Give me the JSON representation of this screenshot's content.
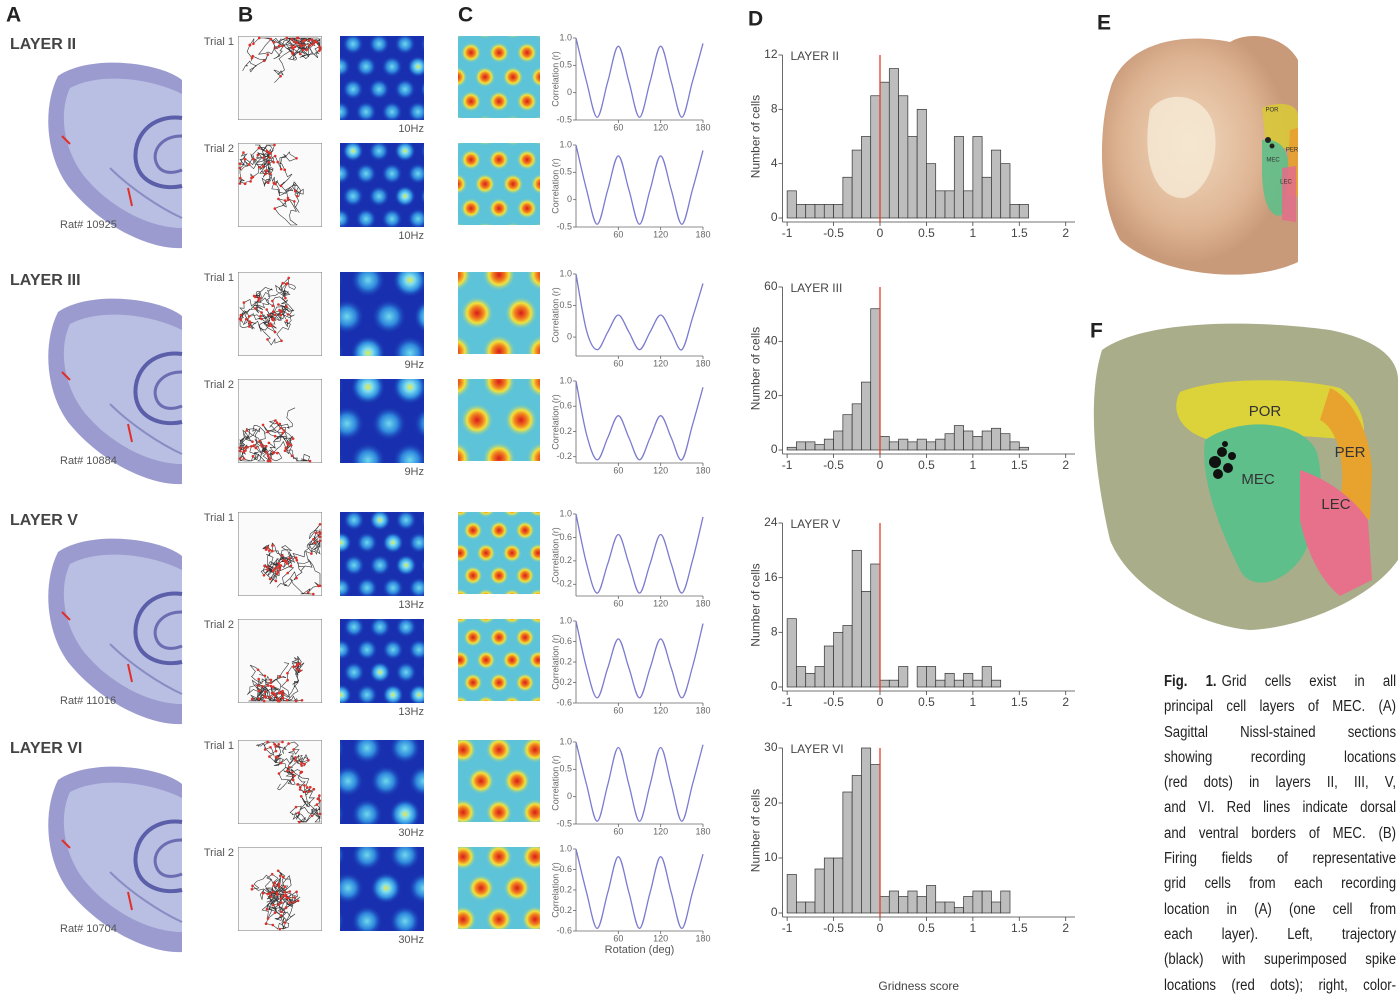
{
  "panel_labels": [
    "A",
    "B",
    "C",
    "D",
    "E",
    "F"
  ],
  "layers": [
    {
      "name": "LAYER II",
      "rat": "Rat# 10925",
      "trials": [
        "Trial 1",
        "Trial 2"
      ],
      "peak_rates": [
        "10Hz",
        "10Hz"
      ]
    },
    {
      "name": "LAYER III",
      "rat": "Rat# 10884",
      "trials": [
        "Trial 1",
        "Trial 2"
      ],
      "peak_rates": [
        "9Hz",
        "9Hz"
      ]
    },
    {
      "name": "LAYER V",
      "rat": "Rat# 11016",
      "trials": [
        "Trial 1",
        "Trial 2"
      ],
      "peak_rates": [
        "13Hz",
        "13Hz"
      ]
    },
    {
      "name": "LAYER VI",
      "rat": "Rat# 10704",
      "trials": [
        "Trial 1",
        "Trial 2"
      ],
      "peak_rates": [
        "30Hz",
        "30Hz"
      ]
    }
  ],
  "brain_e": {
    "labels": [
      "POR",
      "PER",
      "MEC",
      "LEC"
    ]
  },
  "brain_f": {
    "labels": [
      "POR",
      "PER",
      "MEC",
      "LEC"
    ]
  },
  "caption": {
    "label": "Fig. 1.",
    "lines": [
      "Grid cells exist in all",
      "principal cell layers of MEC. (A)",
      "Sagittal Nissl-stained sections",
      "showing recording locations",
      "(red dots) in layers II, III, V,",
      "and VI. Red lines indicate dorsal",
      "and ventral borders of MEC. (B)",
      "Firing fields of representative",
      "grid cells from each recording",
      "location in (A) (one cell from",
      "each layer). Left, trajectory",
      "(black) with superimposed spike",
      "locations (red dots); right, color-"
    ]
  },
  "chart_data": [
    {
      "type": "line",
      "ylabel": "Correlation (r)",
      "color": "#7b7bd0",
      "x": [
        0,
        15,
        30,
        45,
        60,
        75,
        90,
        105,
        120,
        135,
        150,
        165,
        180
      ],
      "values": [
        1,
        0.2,
        -0.45,
        0.2,
        0.85,
        0.2,
        -0.45,
        0.2,
        0.85,
        0.2,
        -0.45,
        0.2,
        0.9
      ],
      "xlim": [
        0,
        180
      ],
      "ylim": [
        -0.5,
        1
      ],
      "xticks": [
        60,
        120,
        180
      ],
      "yticks": [
        {
          "value": 1,
          "label": "1.0"
        },
        0.5,
        0,
        -0.5
      ]
    },
    {
      "type": "line",
      "ylabel": "Correlation (r)",
      "color": "#7b7bd0",
      "x": [
        0,
        15,
        30,
        45,
        60,
        75,
        90,
        105,
        120,
        135,
        150,
        165,
        180
      ],
      "values": [
        1,
        0.18,
        -0.45,
        0.18,
        0.8,
        0.18,
        -0.45,
        0.18,
        0.8,
        0.18,
        -0.45,
        0.18,
        0.9
      ],
      "xlim": [
        0,
        180
      ],
      "ylim": [
        -0.5,
        1
      ],
      "xticks": [
        60,
        120,
        180
      ],
      "yticks": [
        {
          "value": 1,
          "label": "1.0"
        },
        0.5,
        0,
        -0.5
      ]
    },
    {
      "type": "line",
      "ylabel": "Correlation (r)",
      "color": "#7b7bd0",
      "x": [
        0,
        15,
        30,
        45,
        60,
        75,
        90,
        105,
        120,
        135,
        150,
        165,
        180
      ],
      "values": [
        1,
        0.1,
        -0.2,
        0.08,
        0.35,
        0.08,
        -0.2,
        0.08,
        0.35,
        0.08,
        -0.2,
        0.3,
        0.85
      ],
      "xlim": [
        0,
        180
      ],
      "ylim": [
        -0.3,
        1
      ],
      "xticks": [
        60,
        120,
        180
      ],
      "yticks": [
        {
          "value": 1,
          "label": "1.0"
        },
        0.5,
        0
      ]
    },
    {
      "type": "line",
      "ylabel": "Correlation (r)",
      "color": "#7b7bd0",
      "x": [
        0,
        15,
        30,
        45,
        60,
        75,
        90,
        105,
        120,
        135,
        150,
        165,
        180
      ],
      "values": [
        1,
        0.15,
        -0.25,
        0.1,
        0.45,
        0.1,
        -0.25,
        0.1,
        0.45,
        0.1,
        -0.25,
        0.3,
        0.9
      ],
      "xlim": [
        0,
        180
      ],
      "ylim": [
        -0.3,
        1
      ],
      "xticks": [
        60,
        120,
        180
      ],
      "yticks": [
        {
          "value": 1,
          "label": "1.0"
        },
        0.6,
        0.2,
        -0.2
      ]
    },
    {
      "type": "line",
      "ylabel": "Correlation (r)",
      "color": "#7b7bd0",
      "x": [
        0,
        15,
        30,
        45,
        60,
        75,
        90,
        105,
        120,
        135,
        150,
        165,
        180
      ],
      "values": [
        1,
        0.15,
        -0.35,
        0.15,
        0.65,
        0.15,
        -0.35,
        0.15,
        0.65,
        0.15,
        -0.35,
        0.2,
        0.95
      ],
      "xlim": [
        0,
        180
      ],
      "ylim": [
        -0.4,
        1
      ],
      "xticks": [
        60,
        120,
        180
      ],
      "yticks": [
        {
          "value": 1,
          "label": "1.0"
        },
        0.6,
        0.2,
        -0.2
      ]
    },
    {
      "type": "line",
      "ylabel": "Correlation (r)",
      "color": "#7b7bd0",
      "x": [
        0,
        15,
        30,
        45,
        60,
        75,
        90,
        105,
        120,
        135,
        150,
        165,
        180
      ],
      "values": [
        1,
        0.08,
        -0.5,
        0.08,
        0.65,
        0.08,
        -0.5,
        0.08,
        0.65,
        0.08,
        -0.5,
        0.1,
        0.95
      ],
      "xlim": [
        0,
        180
      ],
      "ylim": [
        -0.6,
        1
      ],
      "xticks": [
        60,
        120,
        180
      ],
      "yticks": [
        {
          "value": 1,
          "label": "1.0"
        },
        0.6,
        0.2,
        -0.2,
        -0.6
      ]
    },
    {
      "type": "line",
      "ylabel": "Correlation (r)",
      "color": "#7b7bd0",
      "x": [
        0,
        15,
        30,
        45,
        60,
        75,
        90,
        105,
        120,
        135,
        150,
        165,
        180
      ],
      "values": [
        1,
        0.22,
        -0.45,
        0.22,
        0.9,
        0.22,
        -0.45,
        0.22,
        0.9,
        0.22,
        -0.45,
        0.22,
        0.95
      ],
      "xlim": [
        0,
        180
      ],
      "ylim": [
        -0.5,
        1
      ],
      "xticks": [
        60,
        120,
        180
      ],
      "yticks": [
        {
          "value": 1,
          "label": "1.0"
        },
        0.5,
        0,
        -0.5
      ]
    },
    {
      "type": "line",
      "ylabel": "Correlation (r)",
      "xlabel": "Rotation (deg)",
      "color": "#7b7bd0",
      "x": [
        0,
        15,
        30,
        45,
        60,
        75,
        90,
        105,
        120,
        135,
        150,
        165,
        180
      ],
      "values": [
        1,
        0.15,
        -0.55,
        0.15,
        0.85,
        0.15,
        -0.55,
        0.15,
        0.85,
        0.15,
        -0.55,
        0.15,
        0.9
      ],
      "xlim": [
        0,
        180
      ],
      "ylim": [
        -0.6,
        1
      ],
      "xticks": [
        60,
        120,
        180
      ],
      "yticks": [
        {
          "value": 1,
          "label": "1.0"
        },
        0.6,
        0.2,
        -0.2,
        -0.6
      ]
    },
    {
      "type": "histogram",
      "title": "LAYER II",
      "ylabel": "Number of cells",
      "color": "#bdbdbd",
      "vline": 0,
      "vline_color": "#e0402a",
      "bins": [
        -1,
        -0.9,
        -0.8,
        -0.7,
        -0.6,
        -0.5,
        -0.4,
        -0.3,
        -0.2,
        -0.1,
        0,
        0.1,
        0.2,
        0.3,
        0.4,
        0.5,
        0.6,
        0.7,
        0.8,
        0.9,
        1,
        1.1,
        1.2,
        1.3,
        1.4,
        1.5,
        1.6
      ],
      "values": [
        2,
        1,
        1,
        1,
        1,
        1,
        3,
        5,
        6,
        9,
        10,
        11,
        9,
        6,
        8,
        4,
        2,
        2,
        6,
        2,
        6,
        3,
        5,
        4,
        1,
        1
      ],
      "xlim": [
        -1.05,
        2.1
      ],
      "ylim": [
        0,
        12
      ],
      "xticks": [
        -1,
        -0.5,
        0,
        0.5,
        1,
        1.5,
        2
      ],
      "yticks": [
        0,
        4,
        8,
        12
      ]
    },
    {
      "type": "histogram",
      "title": "LAYER III",
      "ylabel": "Number of cells",
      "color": "#bdbdbd",
      "vline": 0,
      "vline_color": "#e0402a",
      "bins": [
        -1,
        -0.9,
        -0.8,
        -0.7,
        -0.6,
        -0.5,
        -0.4,
        -0.3,
        -0.2,
        -0.1,
        0,
        0.1,
        0.2,
        0.3,
        0.4,
        0.5,
        0.6,
        0.7,
        0.8,
        0.9,
        1,
        1.1,
        1.2,
        1.3,
        1.4,
        1.5,
        1.6
      ],
      "values": [
        1,
        3,
        3,
        2,
        4,
        7,
        13,
        17,
        25,
        52,
        5,
        3,
        4,
        3,
        4,
        3,
        4,
        6,
        9,
        7,
        5,
        7,
        8,
        6,
        3,
        1
      ],
      "xlim": [
        -1.05,
        2.1
      ],
      "ylim": [
        0,
        60
      ],
      "xticks": [
        -1,
        -0.5,
        0,
        0.5,
        1,
        1.5,
        2
      ],
      "yticks": [
        0,
        20,
        40,
        60
      ]
    },
    {
      "type": "histogram",
      "title": "LAYER V",
      "ylabel": "Number of cells",
      "color": "#bdbdbd",
      "vline": 0,
      "vline_color": "#e0402a",
      "bins": [
        -1,
        -0.9,
        -0.8,
        -0.7,
        -0.6,
        -0.5,
        -0.4,
        -0.3,
        -0.2,
        -0.1,
        0,
        0.1,
        0.2,
        0.3,
        0.4,
        0.5,
        0.6,
        0.7,
        0.8,
        0.9,
        1,
        1.1,
        1.2,
        1.3,
        1.4,
        1.5,
        1.6
      ],
      "values": [
        10,
        3,
        2,
        3,
        6,
        8,
        9,
        20,
        14,
        18,
        1,
        1,
        3,
        0,
        3,
        3,
        1,
        2,
        1,
        2,
        1,
        3,
        1,
        0,
        0,
        0
      ],
      "xlim": [
        -1.05,
        2.1
      ],
      "ylim": [
        0,
        24
      ],
      "xticks": [
        -1,
        -0.5,
        0,
        0.5,
        1,
        1.5,
        2
      ],
      "yticks": [
        0,
        8,
        16,
        24
      ]
    },
    {
      "type": "histogram",
      "title": "LAYER VI",
      "ylabel": "Number of cells",
      "xlabel": "Gridness score",
      "color": "#bdbdbd",
      "vline": 0,
      "vline_color": "#e0402a",
      "bins": [
        -1,
        -0.9,
        -0.8,
        -0.7,
        -0.6,
        -0.5,
        -0.4,
        -0.3,
        -0.2,
        -0.1,
        0,
        0.1,
        0.2,
        0.3,
        0.4,
        0.5,
        0.6,
        0.7,
        0.8,
        0.9,
        1,
        1.1,
        1.2,
        1.3,
        1.4,
        1.5,
        1.6
      ],
      "values": [
        7,
        2,
        2,
        8,
        10,
        10,
        22,
        25,
        30,
        27,
        3,
        4,
        3,
        4,
        3,
        5,
        2,
        2,
        1,
        3,
        4,
        4,
        2,
        4,
        0,
        0
      ],
      "xlim": [
        -1.05,
        2.1
      ],
      "ylim": [
        0,
        30
      ],
      "xticks": [
        -1,
        -0.5,
        0,
        0.5,
        1,
        1.5,
        2
      ],
      "yticks": [
        0,
        10,
        20,
        30
      ]
    }
  ]
}
